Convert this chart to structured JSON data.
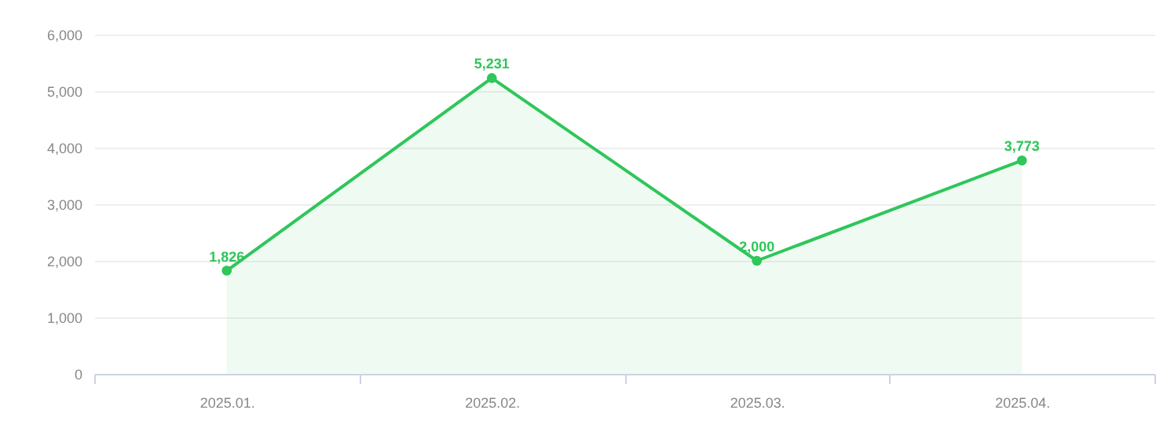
{
  "chart_data": {
    "type": "area",
    "categories": [
      "2025.01.",
      "2025.02.",
      "2025.03.",
      "2025.04."
    ],
    "series": [
      {
        "color": "#2fc65a",
        "values": [
          1826,
          5231,
          2000,
          3773
        ],
        "value_labels": [
          "1,826",
          "5,231",
          "2,000",
          "3,773"
        ]
      }
    ],
    "ylim": [
      0,
      6000
    ],
    "yticks": [
      {
        "value": 0,
        "label": "0"
      },
      {
        "value": 1000,
        "label": "1,000"
      },
      {
        "value": 2000,
        "label": "2,000"
      },
      {
        "value": 3000,
        "label": "3,000"
      },
      {
        "value": 4000,
        "label": "4,000"
      },
      {
        "value": 5000,
        "label": "5,000"
      },
      {
        "value": 6000,
        "label": "6,000"
      }
    ],
    "grid": "y",
    "marker": "circle"
  }
}
